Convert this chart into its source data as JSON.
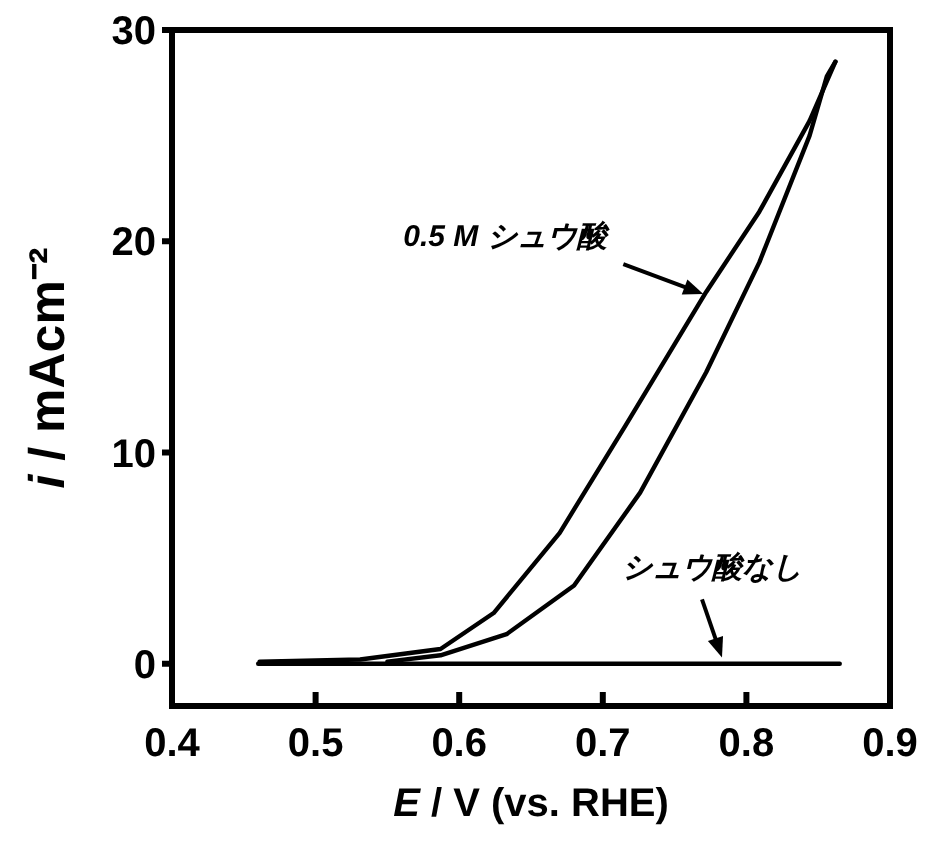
{
  "chart_data": {
    "type": "line",
    "xlabel": "E / V (vs. RHE)",
    "ylabel": "i / mAcm⁻²",
    "xlim": [
      0.4,
      0.9
    ],
    "ylim": [
      -2,
      30
    ],
    "xticks": [
      0.4,
      0.5,
      0.6,
      0.7,
      0.8,
      0.9
    ],
    "yticks": [
      0,
      10,
      20,
      30
    ],
    "grid": false,
    "marker": "none",
    "line_style": "solid",
    "series": [
      {
        "color": "#000000",
        "x": [
          0.461,
          0.531,
          0.587,
          0.624,
          0.67,
          0.716,
          0.772,
          0.809,
          0.844,
          0.862
        ],
        "values": [
          0.1,
          0.2,
          0.7,
          2.4,
          6.2,
          11.3,
          17.6,
          21.4,
          25.7,
          28.5
        ]
      },
      {
        "color": "#000000",
        "x": [
          0.55,
          0.587,
          0.633,
          0.68,
          0.726,
          0.772,
          0.809,
          0.844,
          0.856,
          0.862
        ],
        "values": [
          0.1,
          0.4,
          1.4,
          3.7,
          8.1,
          13.8,
          19,
          25,
          27.8,
          28.5
        ]
      },
      {
        "color": "#000000",
        "x": [
          0.46,
          0.865
        ],
        "values": [
          0,
          0
        ]
      }
    ],
    "annotations": [
      {
        "text": "0.5 M シュウ酸",
        "x": 0.77,
        "y": 17.5
      },
      {
        "text": "シュウ酸なし",
        "x": 0.783,
        "y": 0.3
      }
    ]
  }
}
